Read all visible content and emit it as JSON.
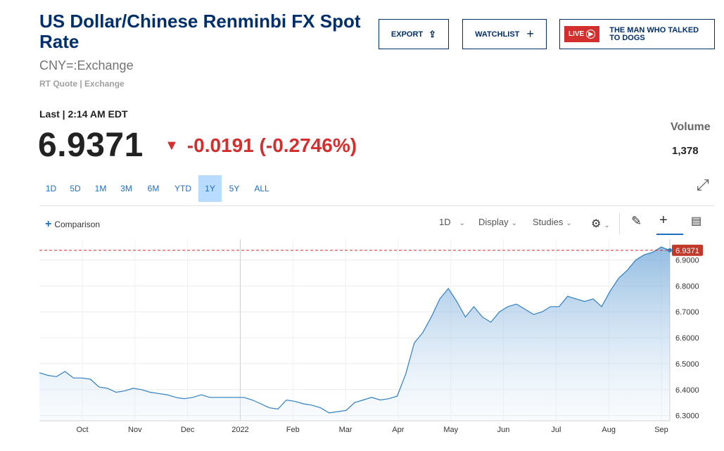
{
  "header": {
    "title": "US Dollar/Chinese Renminbi FX Spot Rate",
    "symbol": "CNY=:Exchange",
    "quote_type": "RT Quote | Exchange"
  },
  "buttons": {
    "export": "EXPORT",
    "watchlist": "WATCHLIST",
    "live_badge": "LIVE",
    "live_show": "THE MAN WHO TALKED TO DOGS"
  },
  "quote": {
    "last_label": "Last | 2:14 AM EDT",
    "price": "6.9371",
    "change": "-0.0191 (-0.2746%)",
    "volume_label": "Volume",
    "volume": "1,378"
  },
  "ranges": [
    "1D",
    "5D",
    "1M",
    "3M",
    "6M",
    "YTD",
    "1Y",
    "5Y",
    "ALL"
  ],
  "active_range": "1Y",
  "toolbar": {
    "comparison": "Comparison",
    "interval": "1D",
    "display": "Display",
    "studies": "Studies"
  },
  "colors": {
    "accent": "#002f6c",
    "down": "#d32f2f",
    "line": "#2f7fc1",
    "link": "#1f6fbf"
  },
  "chart_data": {
    "type": "area",
    "x_labels": [
      "Oct",
      "Nov",
      "Dec",
      "2022",
      "Feb",
      "Mar",
      "Apr",
      "May",
      "Jun",
      "Jul",
      "Aug",
      "Sep"
    ],
    "y_ticks": [
      "6.3000",
      "6.4000",
      "6.5000",
      "6.6000",
      "6.7000",
      "6.8000",
      "6.9000"
    ],
    "ylim": [
      6.28,
      6.98
    ],
    "last_value": "6.9371",
    "series": [
      {
        "values": [
          6.465,
          6.455,
          6.45,
          6.47,
          6.445,
          6.445,
          6.44,
          6.41,
          6.405,
          6.39,
          6.395,
          6.405,
          6.4,
          6.39,
          6.385,
          6.38,
          6.37,
          6.365,
          6.37,
          6.38,
          6.37,
          6.37,
          6.37,
          6.37,
          6.37,
          6.36,
          6.345,
          6.33,
          6.325,
          6.36,
          6.355,
          6.345,
          6.34,
          6.33,
          6.31,
          6.315,
          6.32,
          6.35,
          6.36,
          6.37,
          6.36,
          6.365,
          6.375,
          6.46,
          6.58,
          6.62,
          6.68,
          6.75,
          6.79,
          6.74,
          6.68,
          6.72,
          6.68,
          6.66,
          6.7,
          6.72,
          6.73,
          6.71,
          6.69,
          6.7,
          6.72,
          6.72,
          6.76,
          6.75,
          6.74,
          6.75,
          6.72,
          6.78,
          6.83,
          6.86,
          6.9,
          6.92,
          6.93,
          6.95,
          6.9371
        ]
      }
    ]
  }
}
